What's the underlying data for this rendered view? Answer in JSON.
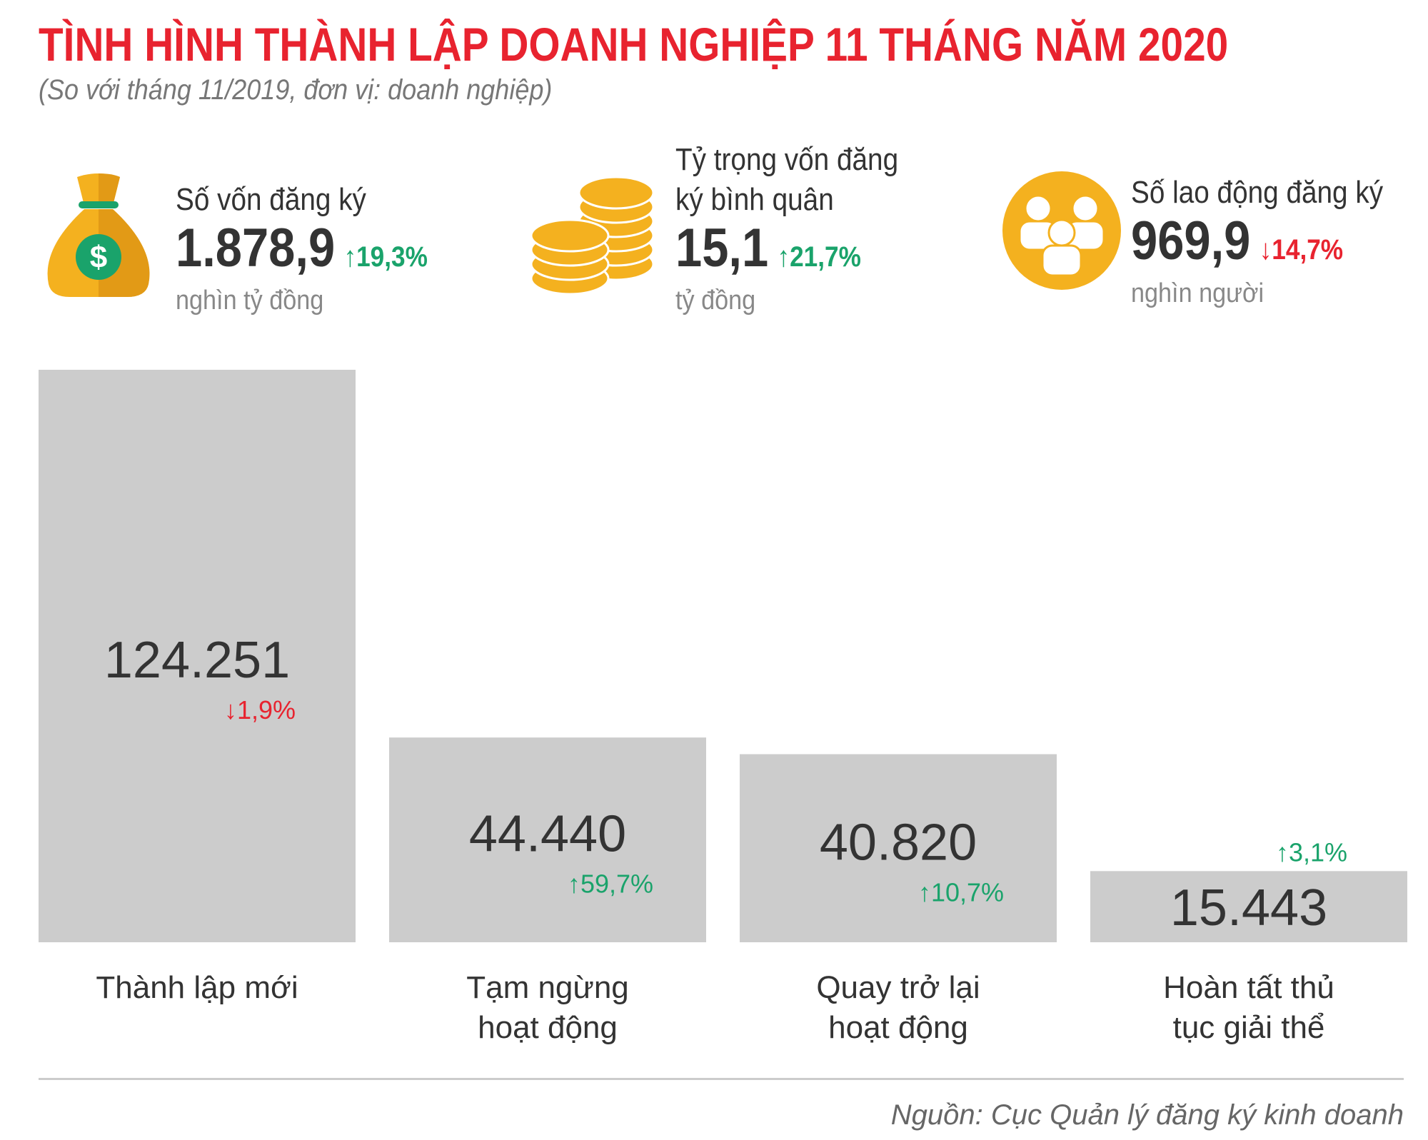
{
  "header": {
    "title": "TÌNH HÌNH THÀNH LẬP DOANH NGHIỆP 11 THÁNG  NĂM 2020",
    "subtitle": "(So với tháng 11/2019, đơn vị: doanh nghiệp)"
  },
  "kpis": [
    {
      "label_line1": "Số vốn đăng ký",
      "label_line2": "",
      "value": "1.878,9",
      "change": "19,3%",
      "direction": "up",
      "unit": "nghìn tỷ đồng",
      "icon": "money-bag-icon"
    },
    {
      "label_line1": "Tỷ trọng vốn đăng",
      "label_line2": "ký bình quân",
      "value": "15,1",
      "change": "21,7%",
      "direction": "up",
      "unit": "tỷ đồng",
      "icon": "coins-icon"
    },
    {
      "label_line1": "Số lao động đăng ký",
      "label_line2": "",
      "value": "969,9",
      "change": "14,7%",
      "direction": "down",
      "unit": "nghìn người",
      "icon": "people-icon"
    }
  ],
  "chart_data": {
    "type": "bar",
    "title": "",
    "xlabel": "",
    "ylabel": "",
    "categories": [
      [
        "Thành lập mới"
      ],
      [
        "Tạm ngừng",
        "hoạt động"
      ],
      [
        "Quay trở lại",
        "hoạt động"
      ],
      [
        "Hoàn tất thủ",
        "tục giải thể"
      ]
    ],
    "values": [
      124251,
      44440,
      40820,
      15443
    ],
    "value_labels": [
      "124.251",
      "44.440",
      "40.820",
      "15.443"
    ],
    "changes": [
      "1,9%",
      "59,7%",
      "10,7%",
      "3,1%"
    ],
    "change_directions": [
      "down",
      "up",
      "up",
      "up"
    ],
    "ylim": [
      0,
      124251
    ],
    "grid": false,
    "legend": "none",
    "bar_color": "#cccccc"
  },
  "colors": {
    "title": "#e8232f",
    "up": "#1aa36b",
    "down": "#e8232f",
    "icon_gold": "#f4b11f",
    "icon_green": "#1aa36b"
  },
  "footer": {
    "source": "Nguồn: Cục Quản lý đăng ký kinh doanh"
  }
}
